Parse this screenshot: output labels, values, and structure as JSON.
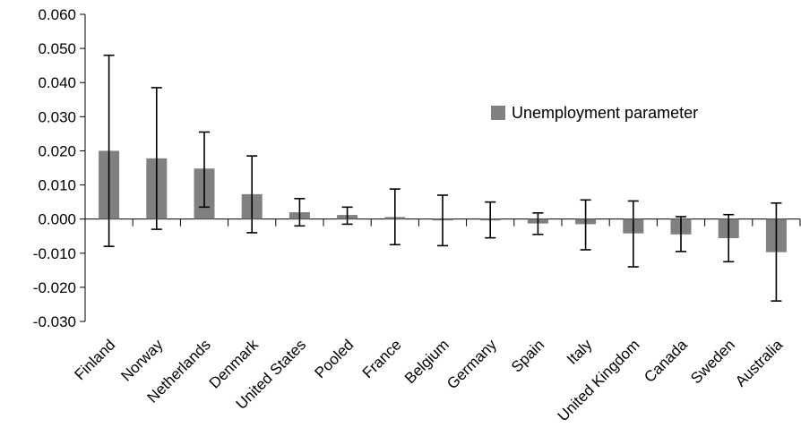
{
  "chart_data": {
    "type": "bar",
    "title": "",
    "xlabel": "",
    "ylabel": "",
    "ylim": [
      -0.03,
      0.06
    ],
    "y_ticks": [
      "0.060",
      "0.050",
      "0.040",
      "0.030",
      "0.020",
      "0.010",
      "0.000",
      "-0.010",
      "-0.020",
      "-0.030"
    ],
    "y_tick_values": [
      0.06,
      0.05,
      0.04,
      0.03,
      0.02,
      0.01,
      0.0,
      -0.01,
      -0.02,
      -0.03
    ],
    "grid": false,
    "legend_position": "top-right",
    "categories": [
      "Finland",
      "Norway",
      "Netherlands",
      "Denmark",
      "United States",
      "Pooled",
      "France",
      "Belgium",
      "Germany",
      "Spain",
      "Italy",
      "United Kingdom",
      "Canada",
      "Sweden",
      "Australia"
    ],
    "series": [
      {
        "name": "Unemployment parameter",
        "color": "#808080",
        "values": [
          0.02,
          0.0178,
          0.0148,
          0.0073,
          0.002,
          0.0012,
          0.0006,
          -0.0004,
          -0.0004,
          -0.0013,
          -0.0015,
          -0.0042,
          -0.0045,
          -0.0056,
          -0.0097
        ],
        "error_low": [
          -0.008,
          -0.003,
          0.0035,
          -0.004,
          -0.002,
          -0.0015,
          -0.0075,
          -0.0078,
          -0.0055,
          -0.0045,
          -0.009,
          -0.014,
          -0.0095,
          -0.0125,
          -0.024
        ],
        "error_high": [
          0.048,
          0.0385,
          0.0255,
          0.0185,
          0.006,
          0.0035,
          0.0088,
          0.007,
          0.005,
          0.0018,
          0.0056,
          0.0053,
          0.0007,
          0.0013,
          0.0047
        ]
      }
    ]
  }
}
